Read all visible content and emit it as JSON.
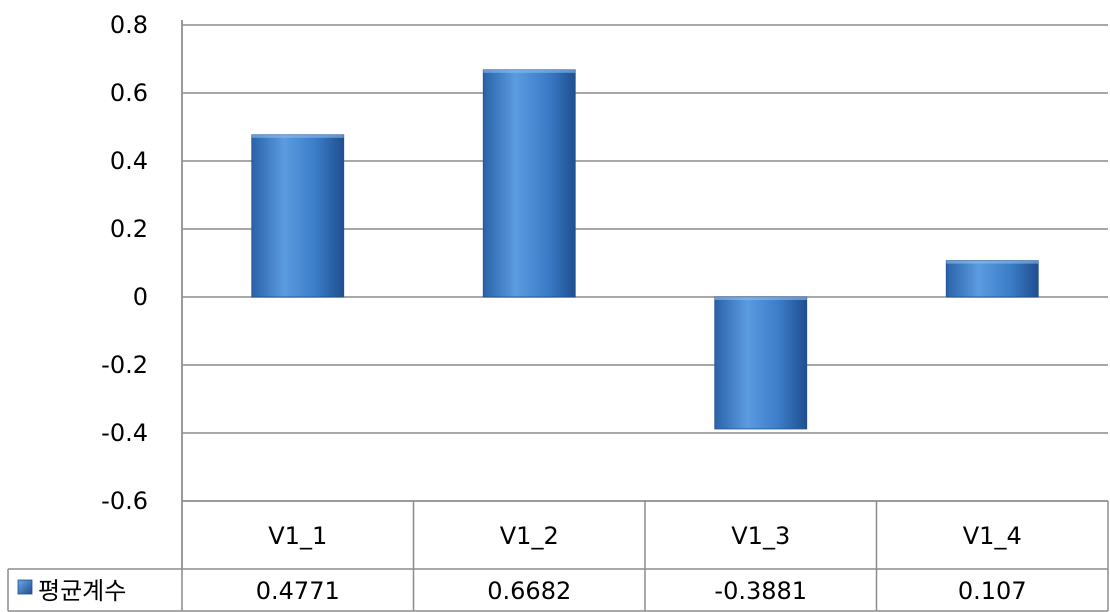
{
  "chart_data": {
    "type": "bar",
    "categories": [
      "V1_1",
      "V1_2",
      "V1_3",
      "V1_4"
    ],
    "series": [
      {
        "name": "평균계수",
        "values": [
          0.4771,
          0.6682,
          -0.3881,
          0.107
        ]
      }
    ],
    "value_labels": [
      "0.4771",
      "0.6682",
      "-0.3881",
      "0.107"
    ],
    "y_ticks": [
      "0.8",
      "0.6",
      "0.4",
      "0.2",
      "0",
      "-0.2",
      "-0.4",
      "-0.6"
    ],
    "ylim": [
      -0.6,
      0.8
    ],
    "grid": true,
    "legend": "data-table",
    "colors": {
      "bar_light": "#5b9be0",
      "bar_mid": "#3b7cc8",
      "bar_dark": "#1f4f8f",
      "grid": "#8c8c8c",
      "legend_key": "#2e6db5"
    },
    "title": "",
    "xlabel": "",
    "ylabel": ""
  }
}
